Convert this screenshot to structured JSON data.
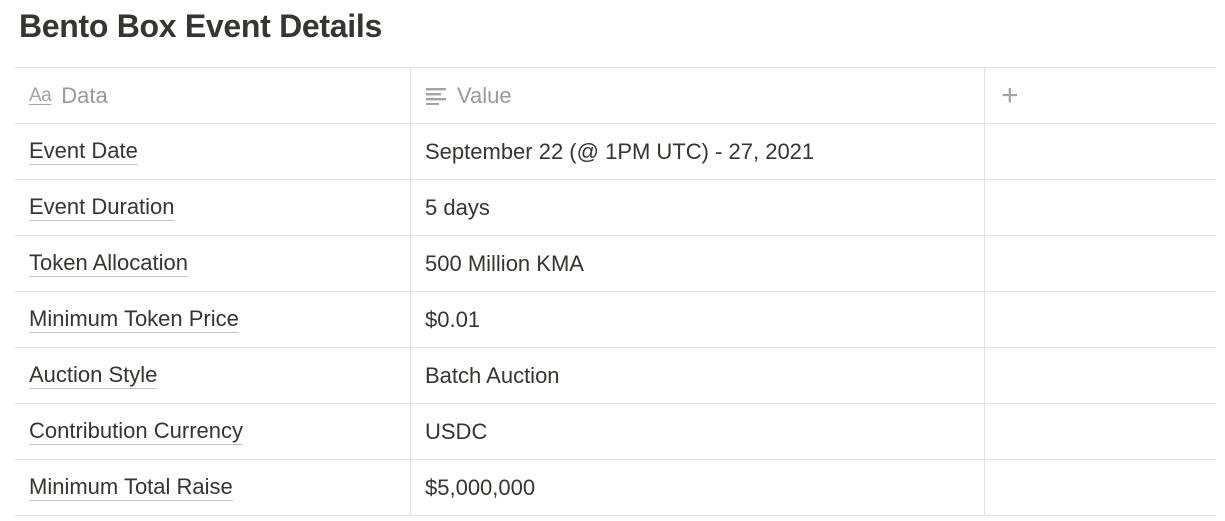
{
  "page": {
    "title": "Bento Box Event Details"
  },
  "table": {
    "columns": [
      {
        "label": "Data",
        "icon": "text-property-icon"
      },
      {
        "label": "Value",
        "icon": "lines-property-icon"
      }
    ],
    "add_column_symbol": "+",
    "rows": [
      {
        "key": "Event Date",
        "value": "September 22 (@ 1PM UTC) - 27, 2021"
      },
      {
        "key": "Event Duration",
        "value": "5 days"
      },
      {
        "key": "Token Allocation",
        "value": "500 Million KMA"
      },
      {
        "key": "Minimum Token Price",
        "value": "$0.01"
      },
      {
        "key": "Auction Style",
        "value": "Batch Auction"
      },
      {
        "key": "Contribution Currency",
        "value": "USDC"
      },
      {
        "key": "Minimum Total Raise",
        "value": "$5,000,000"
      }
    ]
  },
  "colors": {
    "text": "#37352f",
    "muted": "#9b9a97",
    "border": "#e3e2e0"
  }
}
